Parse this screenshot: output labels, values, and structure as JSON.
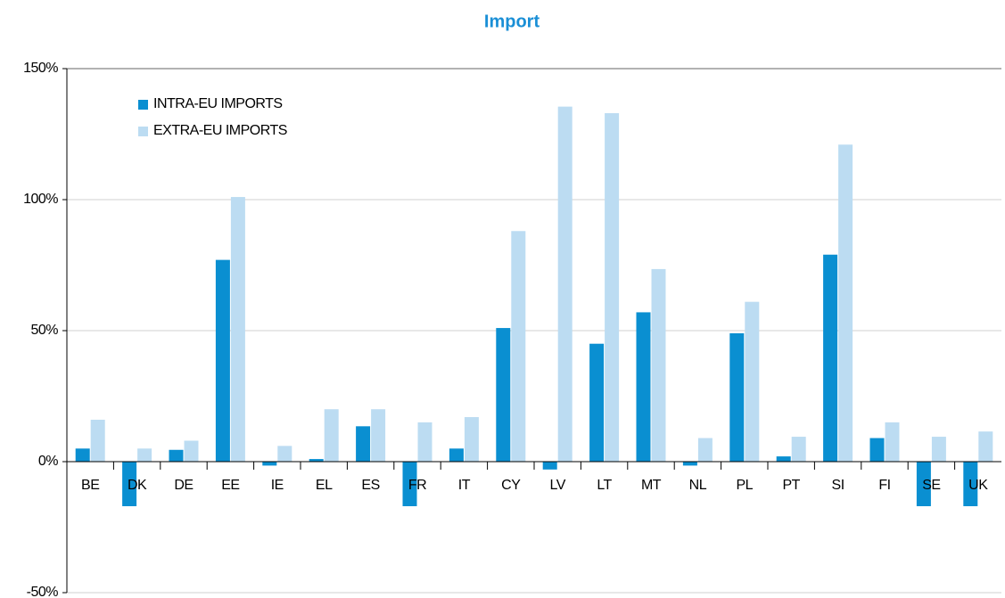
{
  "chart_data": {
    "type": "bar",
    "title": "Import",
    "categories": [
      "BE",
      "DK",
      "DE",
      "EE",
      "IE",
      "EL",
      "ES",
      "FR",
      "IT",
      "CY",
      "LV",
      "LT",
      "MT",
      "NL",
      "PL",
      "PT",
      "SI",
      "FI",
      "SE",
      "UK"
    ],
    "series": [
      {
        "name": "INTRA-EU IMPORTS",
        "color": "#0a8fd1",
        "values": [
          5,
          -17,
          4.5,
          77,
          -1.5,
          1,
          13.5,
          -17,
          5,
          51,
          -3,
          45,
          57,
          -1.5,
          49,
          2,
          79,
          9,
          -17,
          -17
        ]
      },
      {
        "name": "EXTRA-EU IMPORTS",
        "color": "#bcdcf2",
        "values": [
          16,
          5,
          8,
          101,
          6,
          20,
          20,
          15,
          17,
          88,
          135.5,
          133,
          73.5,
          9,
          61,
          9.5,
          121,
          15,
          9.5,
          11.5
        ]
      }
    ],
    "ylim": [
      -50,
      150
    ],
    "yticks": [
      {
        "value": -50,
        "label": "-50%"
      },
      {
        "value": 0,
        "label": "0%"
      },
      {
        "value": 50,
        "label": "50%"
      },
      {
        "value": 100,
        "label": "100%"
      },
      {
        "value": 150,
        "label": "150%"
      }
    ],
    "grid": true,
    "legend": "top-left"
  }
}
